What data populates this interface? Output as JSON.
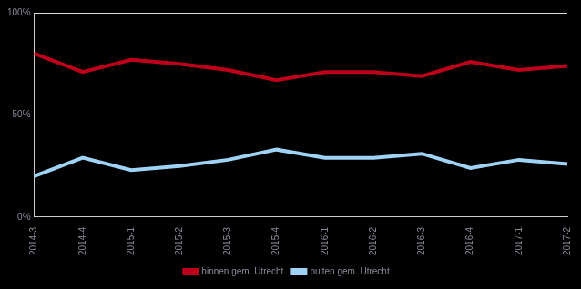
{
  "chart_data": {
    "type": "line",
    "categories": [
      "2014-3",
      "2014-4",
      "2015-1",
      "2015-2",
      "2015-3",
      "2015-4",
      "2016-1",
      "2016-2",
      "2016-3",
      "2016-4",
      "2017-1",
      "2017-2"
    ],
    "series": [
      {
        "name": "binnen gem. Utrecht",
        "color": "#c0001a",
        "values": [
          80,
          71,
          77,
          75,
          72,
          67,
          71,
          71,
          69,
          76,
          72,
          74
        ]
      },
      {
        "name": "buiten gem. Utrecht",
        "color": "#9fd3f5",
        "values": [
          20,
          29,
          23,
          25,
          28,
          33,
          29,
          29,
          31,
          24,
          28,
          26
        ]
      }
    ],
    "ylim": [
      0,
      100
    ],
    "yticks": [
      {
        "value": 0,
        "label": "0%"
      },
      {
        "value": 50,
        "label": "50%"
      },
      {
        "value": 100,
        "label": "100%"
      }
    ],
    "grid": true,
    "legend": "bottom"
  }
}
